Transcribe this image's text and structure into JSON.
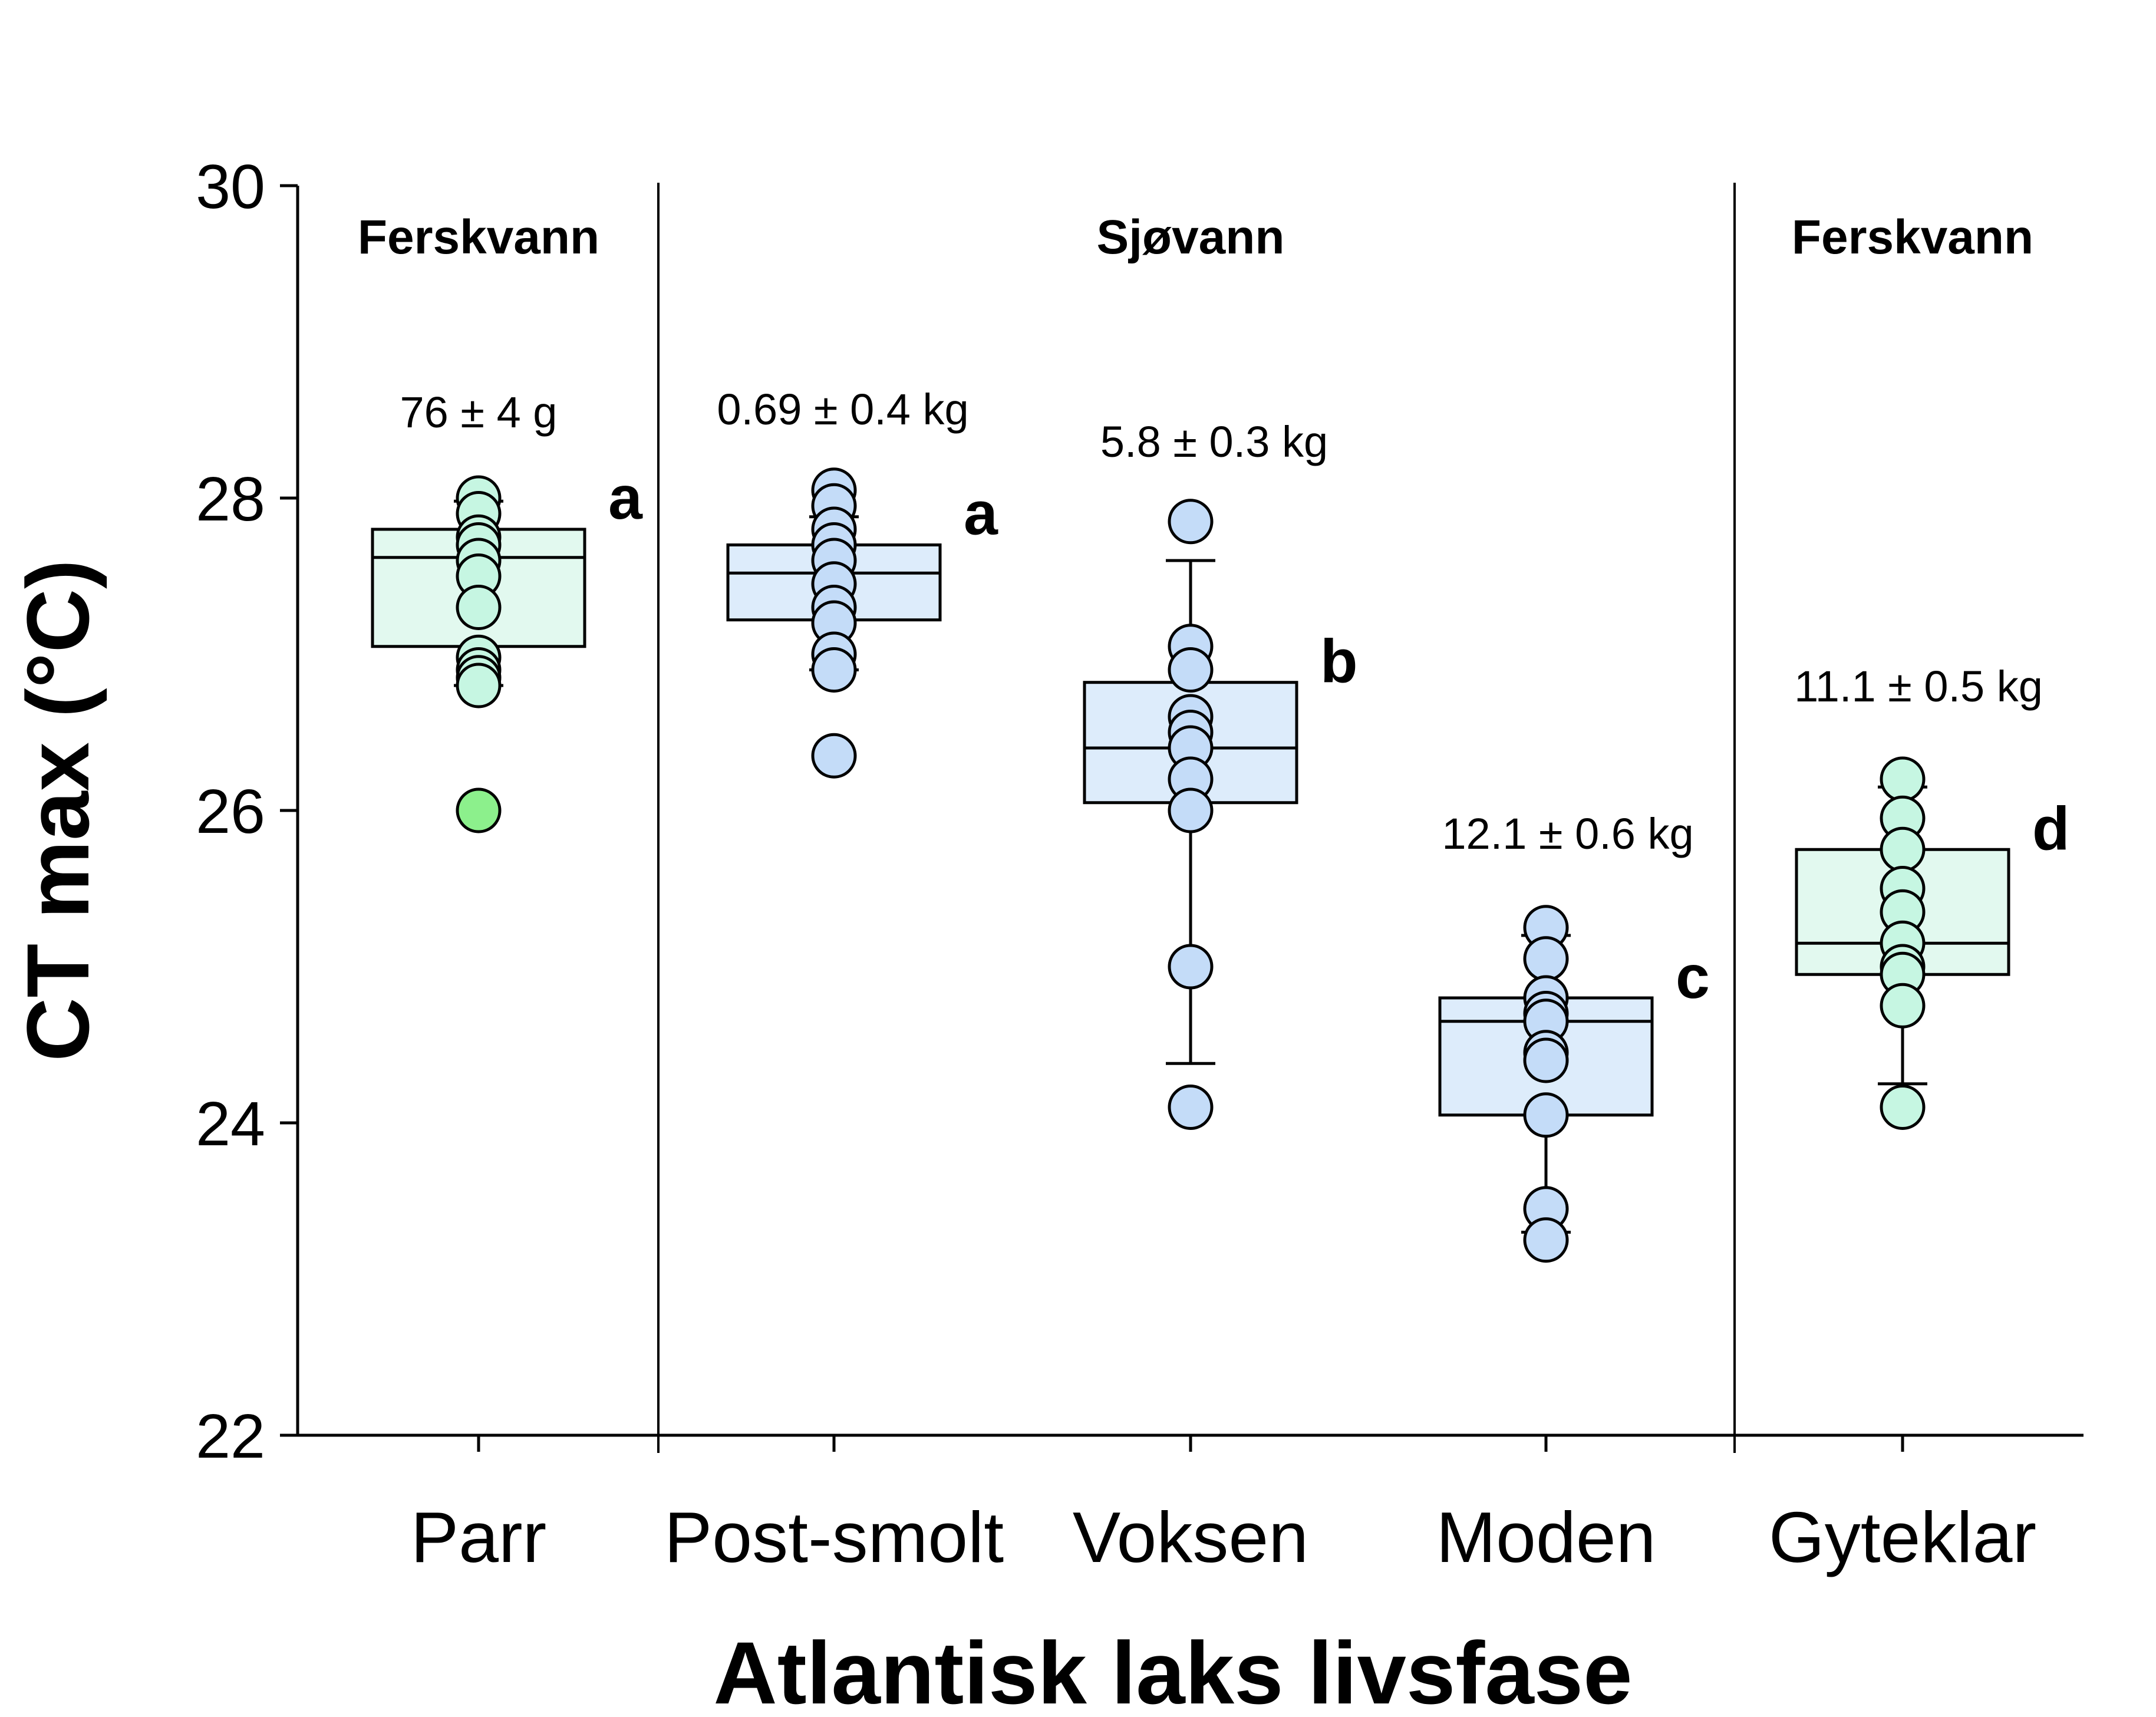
{
  "chart_data": {
    "type": "box",
    "xlabel": "Atlantisk laks livsfase",
    "ylabel": "CT max (°C)",
    "ylim": [
      22,
      30
    ],
    "yticks": [
      22,
      24,
      26,
      28,
      30
    ],
    "grid": false,
    "colors": {
      "freshwater_fill": "#e2f9ef",
      "seawater_fill": "#ddecfb",
      "freshwater_point": "#c6f6e2",
      "seawater_point": "#c4dcf8",
      "outlier_point": "#8cf08c",
      "stroke": "#000000"
    },
    "sections": [
      {
        "label": "Ferskvann",
        "categories": [
          "Parr"
        ]
      },
      {
        "label": "Sjøvann",
        "categories": [
          "Post-smolt",
          "Voksen",
          "Moden"
        ]
      },
      {
        "label": "Ferskvann",
        "categories": [
          "Gyteklar"
        ]
      }
    ],
    "categories": [
      {
        "name": "Parr",
        "habitat": "freshwater",
        "mass": "76 ± 4 g",
        "letter": "a",
        "whisker_low": 26.8,
        "q1": 27.05,
        "median": 27.62,
        "q3": 27.8,
        "whisker_high": 27.98,
        "points": [
          28.0,
          27.9,
          27.75,
          27.7,
          27.6,
          27.5,
          27.3,
          26.98,
          26.9,
          26.85,
          26.8
        ],
        "outliers": [
          26.0
        ]
      },
      {
        "name": "Post-smolt",
        "habitat": "seawater",
        "mass": "0.69 ± 0.4 kg",
        "letter": "a",
        "whisker_low": 26.9,
        "q1": 27.22,
        "median": 27.52,
        "q3": 27.7,
        "whisker_high": 27.88,
        "points": [
          28.05,
          27.95,
          27.8,
          27.7,
          27.6,
          27.45,
          27.3,
          27.2,
          27.0,
          26.9,
          26.35
        ],
        "outliers": []
      },
      {
        "name": "Voksen",
        "habitat": "seawater",
        "mass": "5.8 ± 0.3 kg",
        "letter": "b",
        "whisker_low": 24.38,
        "q1": 26.05,
        "median": 26.4,
        "q3": 26.82,
        "whisker_high": 27.6,
        "points": [
          27.85,
          27.05,
          26.9,
          26.6,
          26.5,
          26.4,
          26.2,
          26.0,
          25.0,
          24.1
        ],
        "outliers": []
      },
      {
        "name": "Moden",
        "habitat": "seawater",
        "mass": "12.1 ± 0.6 kg",
        "letter": "c",
        "whisker_low": 23.3,
        "q1": 24.05,
        "median": 24.65,
        "q3": 24.8,
        "whisker_high": 25.2,
        "points": [
          25.25,
          25.05,
          24.8,
          24.7,
          24.65,
          24.45,
          24.4,
          24.05,
          23.45,
          23.25
        ],
        "outliers": []
      },
      {
        "name": "Gyteklar",
        "habitat": "freshwater",
        "mass": "11.1 ± 0.5 kg",
        "letter": "d",
        "whisker_low": 24.25,
        "q1": 24.95,
        "median": 25.15,
        "q3": 25.75,
        "whisker_high": 26.15,
        "points": [
          26.2,
          25.95,
          25.75,
          25.5,
          25.35,
          25.15,
          25.0,
          24.95,
          24.75,
          24.1
        ],
        "outliers": []
      }
    ]
  }
}
